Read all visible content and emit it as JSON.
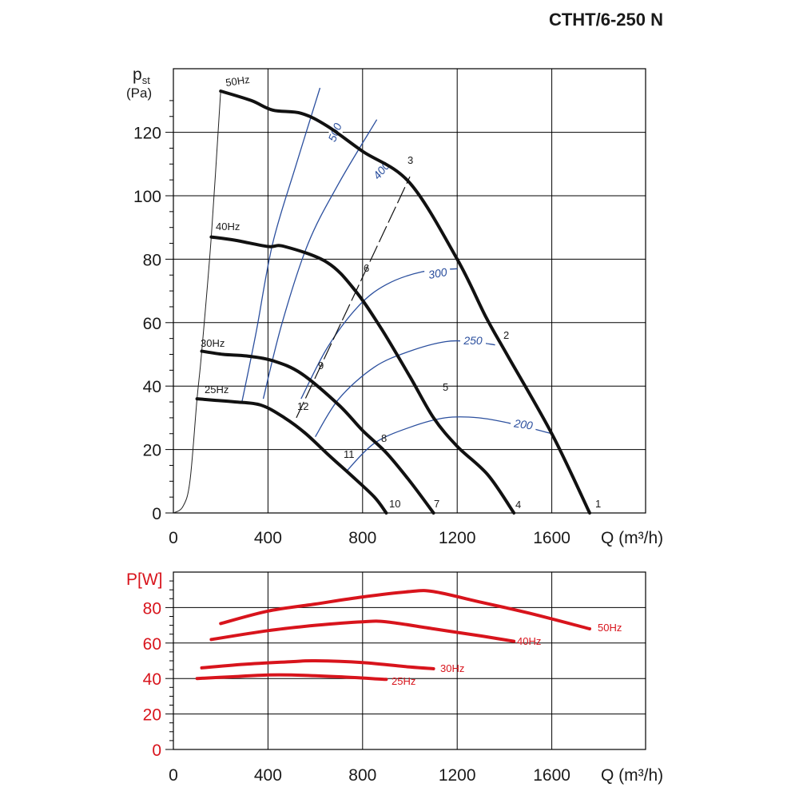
{
  "title": "CTHT/6-250 N",
  "colors": {
    "curve": "#111111",
    "efficiency": "#2b4f9e",
    "power": "#d8141c",
    "grid": "#000000"
  },
  "chart_data": [
    {
      "type": "line",
      "xlabel": "Q (m³/h)",
      "ylabel_main": "p",
      "ylabel_sub": "st",
      "ylabel_unit": "(Pa)",
      "xlim": [
        0,
        2000
      ],
      "ylim": [
        0,
        140
      ],
      "x_ticks": [
        "0",
        "400",
        "800",
        "1200",
        "1600"
      ],
      "y_ticks": [
        "0",
        "20",
        "40",
        "60",
        "80",
        "100",
        "120"
      ],
      "grid": true,
      "series": [
        {
          "name": "50Hz",
          "points": [
            [
              200,
              133
            ],
            [
              330,
              130
            ],
            [
              420,
              127
            ],
            [
              540,
              126
            ],
            [
              650,
              122
            ],
            [
              800,
              114
            ],
            [
              1000,
              104
            ],
            [
              1200,
              80
            ],
            [
              1320,
              62
            ],
            [
              1410,
              50
            ],
            [
              1600,
              25
            ],
            [
              1760,
              0
            ]
          ]
        },
        {
          "name": "40Hz",
          "points": [
            [
              160,
              87
            ],
            [
              260,
              86
            ],
            [
              400,
              84
            ],
            [
              470,
              84
            ],
            [
              650,
              79
            ],
            [
              770,
              70
            ],
            [
              880,
              58
            ],
            [
              1000,
              43
            ],
            [
              1100,
              30
            ],
            [
              1200,
              21
            ],
            [
              1330,
              12
            ],
            [
              1440,
              0
            ]
          ]
        },
        {
          "name": "30Hz",
          "points": [
            [
              120,
              51
            ],
            [
              210,
              50
            ],
            [
              310,
              49.5
            ],
            [
              420,
              48
            ],
            [
              540,
              44
            ],
            [
              700,
              34
            ],
            [
              800,
              26
            ],
            [
              900,
              19
            ],
            [
              1000,
              10
            ],
            [
              1100,
              0
            ]
          ]
        },
        {
          "name": "25Hz",
          "points": [
            [
              100,
              36
            ],
            [
              180,
              35.5
            ],
            [
              260,
              35
            ],
            [
              370,
              34
            ],
            [
              470,
              30
            ],
            [
              560,
              25
            ],
            [
              660,
              18
            ],
            [
              750,
              12
            ],
            [
              850,
              5
            ],
            [
              900,
              0
            ]
          ]
        }
      ],
      "curve_labels": [
        "50Hz",
        "40Hz",
        "30Hz",
        "25Hz"
      ],
      "system_curve": [
        [
          0,
          0
        ],
        [
          40,
          2
        ],
        [
          70,
          10
        ],
        [
          100,
          36
        ],
        [
          120,
          51
        ],
        [
          160,
          87
        ],
        [
          200,
          133
        ]
      ],
      "efficiency_lines": [
        {
          "label": "500",
          "points": [
            [
              290,
              35
            ],
            [
              350,
              57
            ],
            [
              420,
              85
            ],
            [
              520,
              110
            ],
            [
              620,
              134
            ]
          ]
        },
        {
          "label": "400",
          "points": [
            [
              380,
              36
            ],
            [
              460,
              60
            ],
            [
              570,
              85
            ],
            [
              700,
              104
            ],
            [
              860,
              124
            ]
          ]
        },
        {
          "label": "300",
          "points": [
            [
              540,
              36
            ],
            [
              650,
              52
            ],
            [
              780,
              65
            ],
            [
              900,
              72
            ],
            [
              1050,
              76
            ],
            [
              1200,
              77
            ]
          ]
        },
        {
          "label": "250",
          "points": [
            [
              600,
              24
            ],
            [
              700,
              36
            ],
            [
              850,
              46
            ],
            [
              1000,
              51
            ],
            [
              1150,
              54
            ],
            [
              1260,
              54
            ],
            [
              1360,
              53
            ]
          ]
        },
        {
          "label": "200",
          "points": [
            [
              730,
              13
            ],
            [
              850,
              22
            ],
            [
              1000,
              27
            ],
            [
              1150,
              30
            ],
            [
              1290,
              30
            ],
            [
              1440,
              28
            ],
            [
              1600,
              25
            ]
          ]
        }
      ],
      "point_labels": [
        "1",
        "2",
        "3",
        "4",
        "5",
        "6",
        "7",
        "8",
        "9",
        "10",
        "11",
        "12"
      ],
      "dashed_line": [
        [
          520,
          30
        ],
        [
          1000,
          106
        ]
      ]
    },
    {
      "type": "line",
      "ylabel": "P[W]",
      "xlabel": "Q (m³/h)",
      "xlim": [
        0,
        2000
      ],
      "ylim": [
        0,
        100
      ],
      "x_ticks": [
        "0",
        "400",
        "800",
        "1200",
        "1600"
      ],
      "y_ticks": [
        "0",
        "20",
        "40",
        "60",
        "80"
      ],
      "grid": true,
      "series": [
        {
          "name": "50Hz",
          "points": [
            [
              200,
              71
            ],
            [
              400,
              78
            ],
            [
              600,
              82
            ],
            [
              800,
              86
            ],
            [
              1000,
              89
            ],
            [
              1100,
              89
            ],
            [
              1300,
              83
            ],
            [
              1500,
              77
            ],
            [
              1760,
              68
            ]
          ]
        },
        {
          "name": "40Hz",
          "points": [
            [
              160,
              62
            ],
            [
              400,
              67
            ],
            [
              600,
              70
            ],
            [
              800,
              72
            ],
            [
              900,
              72
            ],
            [
              1100,
              68
            ],
            [
              1300,
              64
            ],
            [
              1440,
              61
            ]
          ]
        },
        {
          "name": "30Hz",
          "points": [
            [
              120,
              46
            ],
            [
              300,
              48
            ],
            [
              500,
              49.5
            ],
            [
              600,
              50
            ],
            [
              800,
              49
            ],
            [
              1000,
              46.5
            ],
            [
              1100,
              45.5
            ]
          ]
        },
        {
          "name": "25Hz",
          "points": [
            [
              100,
              40
            ],
            [
              250,
              41
            ],
            [
              400,
              42
            ],
            [
              500,
              42
            ],
            [
              700,
              41
            ],
            [
              900,
              39.5
            ]
          ]
        }
      ],
      "curve_labels": [
        "50Hz",
        "40Hz",
        "30Hz",
        "25Hz"
      ]
    }
  ]
}
